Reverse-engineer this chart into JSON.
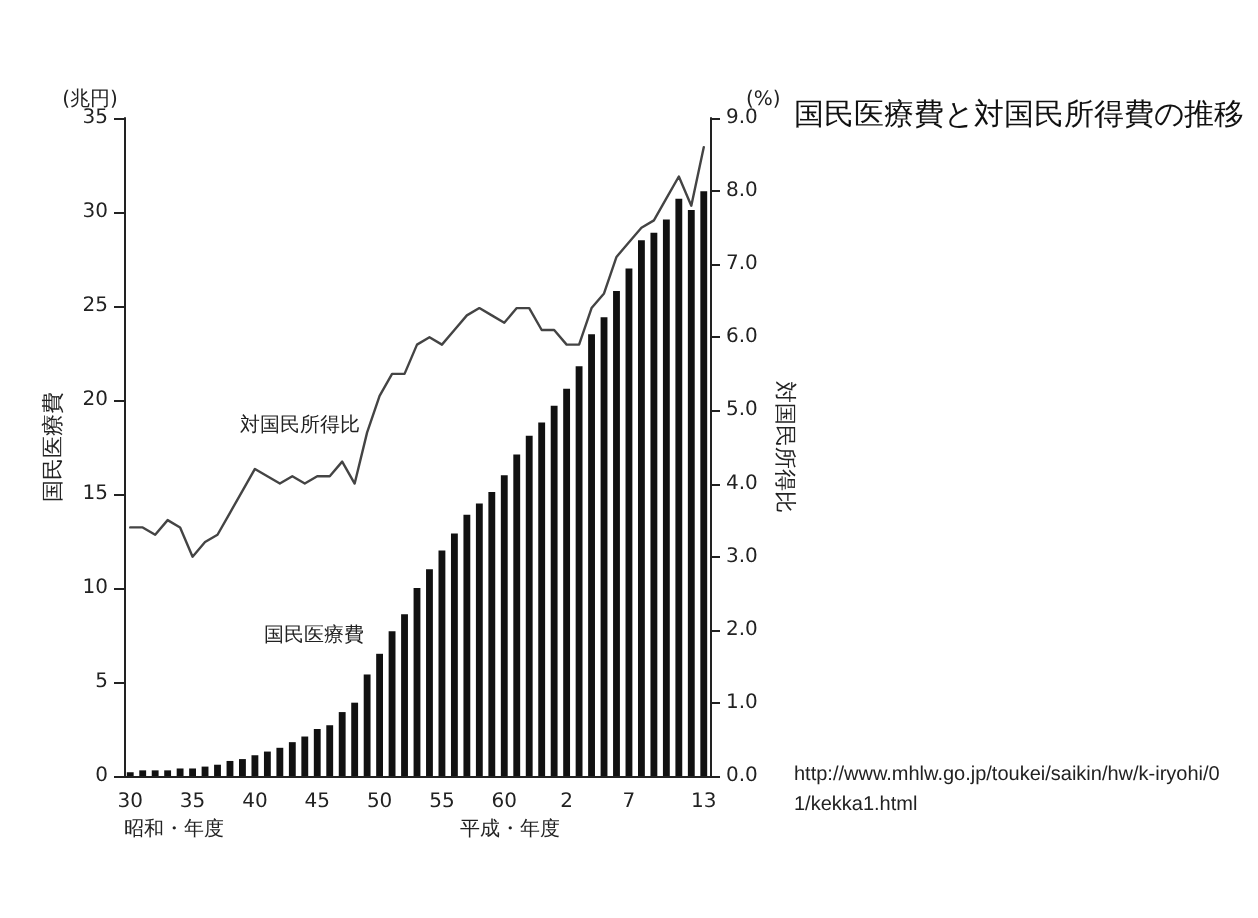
{
  "chart_data": {
    "type": "bar",
    "title": "国民医療費と対国民所得費の推移",
    "categories": [
      "30",
      null,
      null,
      null,
      null,
      "35",
      null,
      null,
      null,
      null,
      "40",
      null,
      null,
      null,
      null,
      "45",
      null,
      null,
      null,
      null,
      "50",
      null,
      null,
      null,
      null,
      "55",
      null,
      null,
      null,
      null,
      "60",
      null,
      null,
      null,
      null,
      "2",
      null,
      null,
      null,
      null,
      "7",
      null,
      null,
      null,
      null,
      null,
      "13"
    ],
    "series": [
      {
        "name": "国民医療費",
        "color": "#111111",
        "values": [
          0.2,
          0.3,
          0.3,
          0.3,
          0.4,
          0.4,
          0.5,
          0.6,
          0.8,
          0.9,
          1.1,
          1.3,
          1.5,
          1.8,
          2.1,
          2.5,
          2.7,
          3.4,
          3.9,
          5.4,
          6.5,
          7.7,
          8.6,
          10.0,
          11.0,
          12.0,
          12.9,
          13.9,
          14.5,
          15.1,
          16.0,
          17.1,
          18.1,
          18.8,
          19.7,
          20.6,
          21.8,
          23.5,
          24.4,
          25.8,
          27.0,
          28.5,
          28.9,
          29.6,
          30.7,
          30.1,
          31.1
        ]
      },
      {
        "name": "対国民所得比",
        "type": "line",
        "axis": "y2",
        "color": "#444444",
        "values": [
          3.4,
          3.4,
          3.3,
          3.5,
          3.4,
          3.0,
          3.2,
          3.3,
          3.6,
          3.9,
          4.2,
          4.1,
          4.0,
          4.1,
          4.0,
          4.1,
          4.1,
          4.3,
          4.0,
          4.7,
          5.2,
          5.5,
          5.5,
          5.9,
          6.0,
          5.9,
          6.1,
          6.3,
          6.4,
          6.3,
          6.2,
          6.4,
          6.4,
          6.1,
          6.1,
          5.9,
          5.9,
          6.4,
          6.6,
          7.1,
          7.3,
          7.5,
          7.6,
          7.9,
          8.2,
          7.8,
          8.6
        ]
      }
    ],
    "xlabel": "昭和・年度",
    "ylabel": "国民医療費",
    "y2label": "対国民所得比",
    "ylim": [
      0,
      35
    ],
    "yticks": [
      0,
      5,
      10,
      15,
      20,
      25,
      30,
      35
    ],
    "y2lim": [
      0,
      9
    ],
    "y2ticks": [
      {
        "value": 0,
        "label": "0.0"
      },
      {
        "value": 1,
        "label": "1.0"
      },
      {
        "value": 2,
        "label": "2.0"
      },
      {
        "value": 3,
        "label": "3.0"
      },
      {
        "value": 4,
        "label": "4.0"
      },
      {
        "value": 5,
        "label": "5.0"
      },
      {
        "value": 6,
        "label": "6.0"
      },
      {
        "value": 7,
        "label": "7.0"
      },
      {
        "value": 8,
        "label": "8.0"
      },
      {
        "value": 9,
        "label": "9.0"
      }
    ],
    "annotations": [
      "(兆円)",
      "(%)",
      "平成・年度",
      "http://www.mhlw.go.jp/toukei/saikin/hw/k-iryohi/01/kekka1.html"
    ],
    "marker": "none",
    "line_style": "solid",
    "grid": false,
    "legend": false
  }
}
